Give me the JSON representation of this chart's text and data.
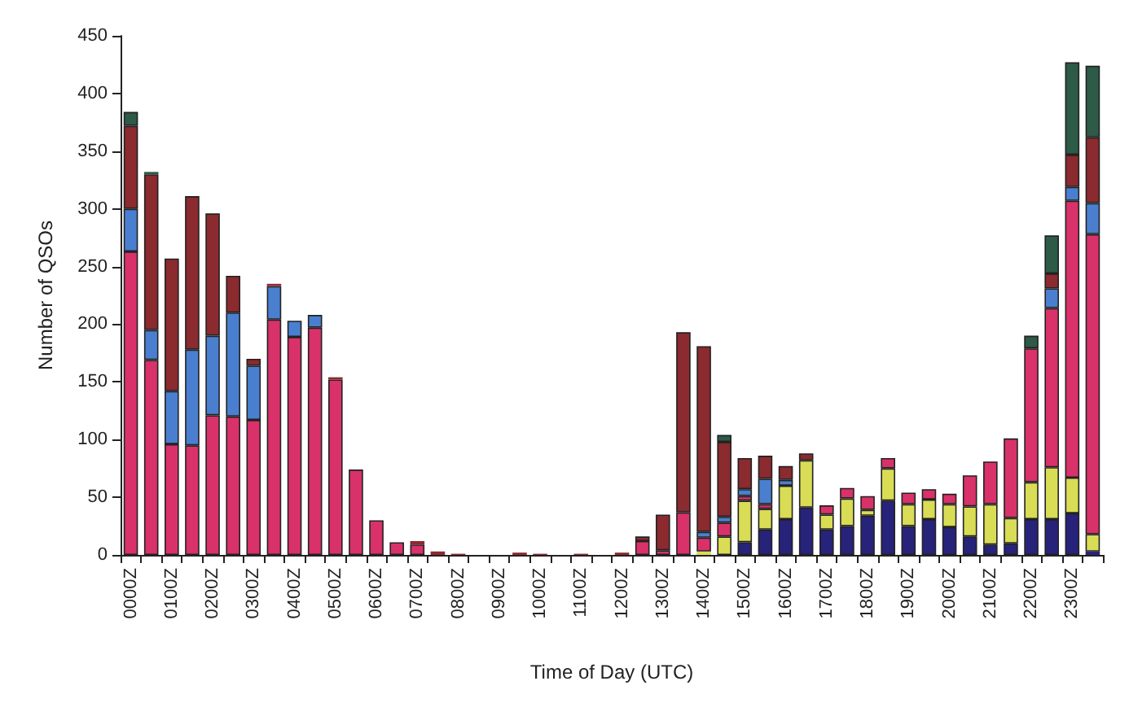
{
  "chart_data": {
    "type": "bar",
    "stacked": true,
    "xlabel": "Time of Day (UTC)",
    "ylabel": "Number of QSOs",
    "categories": [
      "0000Z",
      null,
      "0100Z",
      null,
      "0200Z",
      null,
      "0300Z",
      null,
      "0400Z",
      null,
      "0500Z",
      null,
      "0600Z",
      null,
      "0700Z",
      null,
      "0800Z",
      null,
      "0900Z",
      null,
      "1000Z",
      null,
      "1100Z",
      null,
      "1200Z",
      null,
      "1300Z",
      null,
      "1400Z",
      null,
      "1500Z",
      null,
      "1600Z",
      null,
      "1700Z",
      null,
      "1800Z",
      null,
      "1900Z",
      null,
      "2000Z",
      null,
      "2100Z",
      null,
      "2200Z",
      null,
      "2300Z",
      null
    ],
    "series": [
      {
        "color": "#27237a",
        "values": [
          null,
          null,
          null,
          null,
          null,
          null,
          null,
          null,
          null,
          null,
          null,
          null,
          null,
          null,
          null,
          null,
          null,
          null,
          null,
          null,
          null,
          null,
          null,
          null,
          null,
          null,
          null,
          null,
          null,
          null,
          11,
          22,
          31,
          41,
          22,
          25,
          34,
          47,
          25,
          31,
          24,
          16,
          9,
          10,
          31,
          31,
          36,
          3
        ]
      },
      {
        "color": "#d9dc55",
        "values": [
          null,
          null,
          null,
          null,
          null,
          null,
          null,
          null,
          null,
          null,
          null,
          null,
          null,
          null,
          null,
          null,
          null,
          null,
          null,
          null,
          null,
          null,
          null,
          null,
          null,
          null,
          null,
          null,
          3,
          16,
          36,
          18,
          29,
          41,
          13,
          24,
          5,
          28,
          19,
          17,
          20,
          26,
          35,
          22,
          32,
          45,
          31,
          15
        ]
      },
      {
        "color": "#d9316a",
        "values": [
          263,
          169,
          96,
          95,
          121,
          120,
          117,
          204,
          189,
          197,
          152,
          74,
          30,
          11,
          9,
          null,
          null,
          null,
          null,
          null,
          null,
          null,
          null,
          null,
          null,
          12,
          4,
          37,
          12,
          12,
          4,
          4,
          null,
          null,
          8,
          9,
          12,
          9,
          10,
          9,
          9,
          27,
          37,
          69,
          116,
          138,
          240,
          260
        ]
      },
      {
        "color": "#4a7fd0",
        "values": [
          37,
          26,
          46,
          83,
          69,
          90,
          47,
          29,
          14,
          11,
          null,
          null,
          null,
          null,
          null,
          null,
          null,
          null,
          null,
          null,
          null,
          null,
          null,
          null,
          null,
          null,
          null,
          null,
          5,
          5,
          6,
          22,
          5,
          null,
          null,
          null,
          null,
          null,
          null,
          null,
          null,
          null,
          null,
          null,
          null,
          17,
          12,
          27
        ]
      },
      {
        "color": "#8b2a2f",
        "values": [
          72,
          135,
          115,
          133,
          106,
          32,
          6,
          2,
          null,
          null,
          2,
          null,
          null,
          null,
          3,
          3,
          1,
          null,
          null,
          2,
          1,
          null,
          1,
          null,
          2,
          4,
          31,
          156,
          161,
          65,
          27,
          20,
          12,
          6,
          null,
          null,
          null,
          null,
          null,
          null,
          null,
          null,
          null,
          null,
          null,
          13,
          28,
          57
        ]
      },
      {
        "color": "#2e5a48",
        "values": [
          12,
          2,
          null,
          null,
          null,
          null,
          null,
          null,
          null,
          null,
          null,
          null,
          null,
          null,
          null,
          null,
          null,
          null,
          null,
          null,
          null,
          null,
          null,
          null,
          null,
          null,
          null,
          null,
          null,
          6,
          null,
          null,
          null,
          null,
          null,
          null,
          null,
          null,
          null,
          null,
          null,
          null,
          null,
          null,
          11,
          33,
          80,
          62
        ]
      }
    ],
    "ylim": [
      0,
      450
    ],
    "yticks": [
      0,
      50,
      100,
      150,
      200,
      250,
      300,
      350,
      400,
      450
    ],
    "grid": false
  }
}
